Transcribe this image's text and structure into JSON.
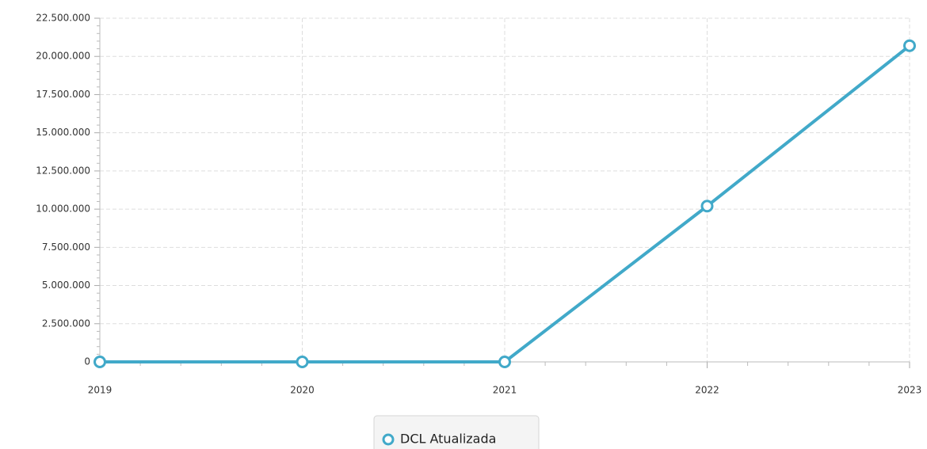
{
  "chart_data": {
    "type": "line",
    "x": [
      2019,
      2020,
      2021,
      2022,
      2023
    ],
    "series": [
      {
        "name": "DCL Atualizada",
        "color": "#41a9c9",
        "values": [
          0,
          0,
          0,
          10200000,
          20700000
        ]
      }
    ],
    "xlim": [
      2019,
      2023
    ],
    "xticks": [
      2019,
      2020,
      2021,
      2022,
      2023
    ],
    "ylim": [
      0,
      22500000
    ],
    "yticks": [
      0,
      {
        "value": 2500000,
        "label": "2.500.000"
      },
      {
        "value": 5000000,
        "label": "5.000.000"
      },
      {
        "value": 7500000,
        "label": "7.500.000"
      },
      {
        "value": 10000000,
        "label": "10.000.000"
      },
      {
        "value": 12500000,
        "label": "12.500.000"
      },
      {
        "value": 15000000,
        "label": "15.000.000"
      },
      {
        "value": 17500000,
        "label": "17.500.000"
      },
      {
        "value": 20000000,
        "label": "20.000.000"
      },
      {
        "value": 22500000,
        "label": "22.500.000"
      }
    ],
    "grid": true,
    "legend": "bottom"
  }
}
